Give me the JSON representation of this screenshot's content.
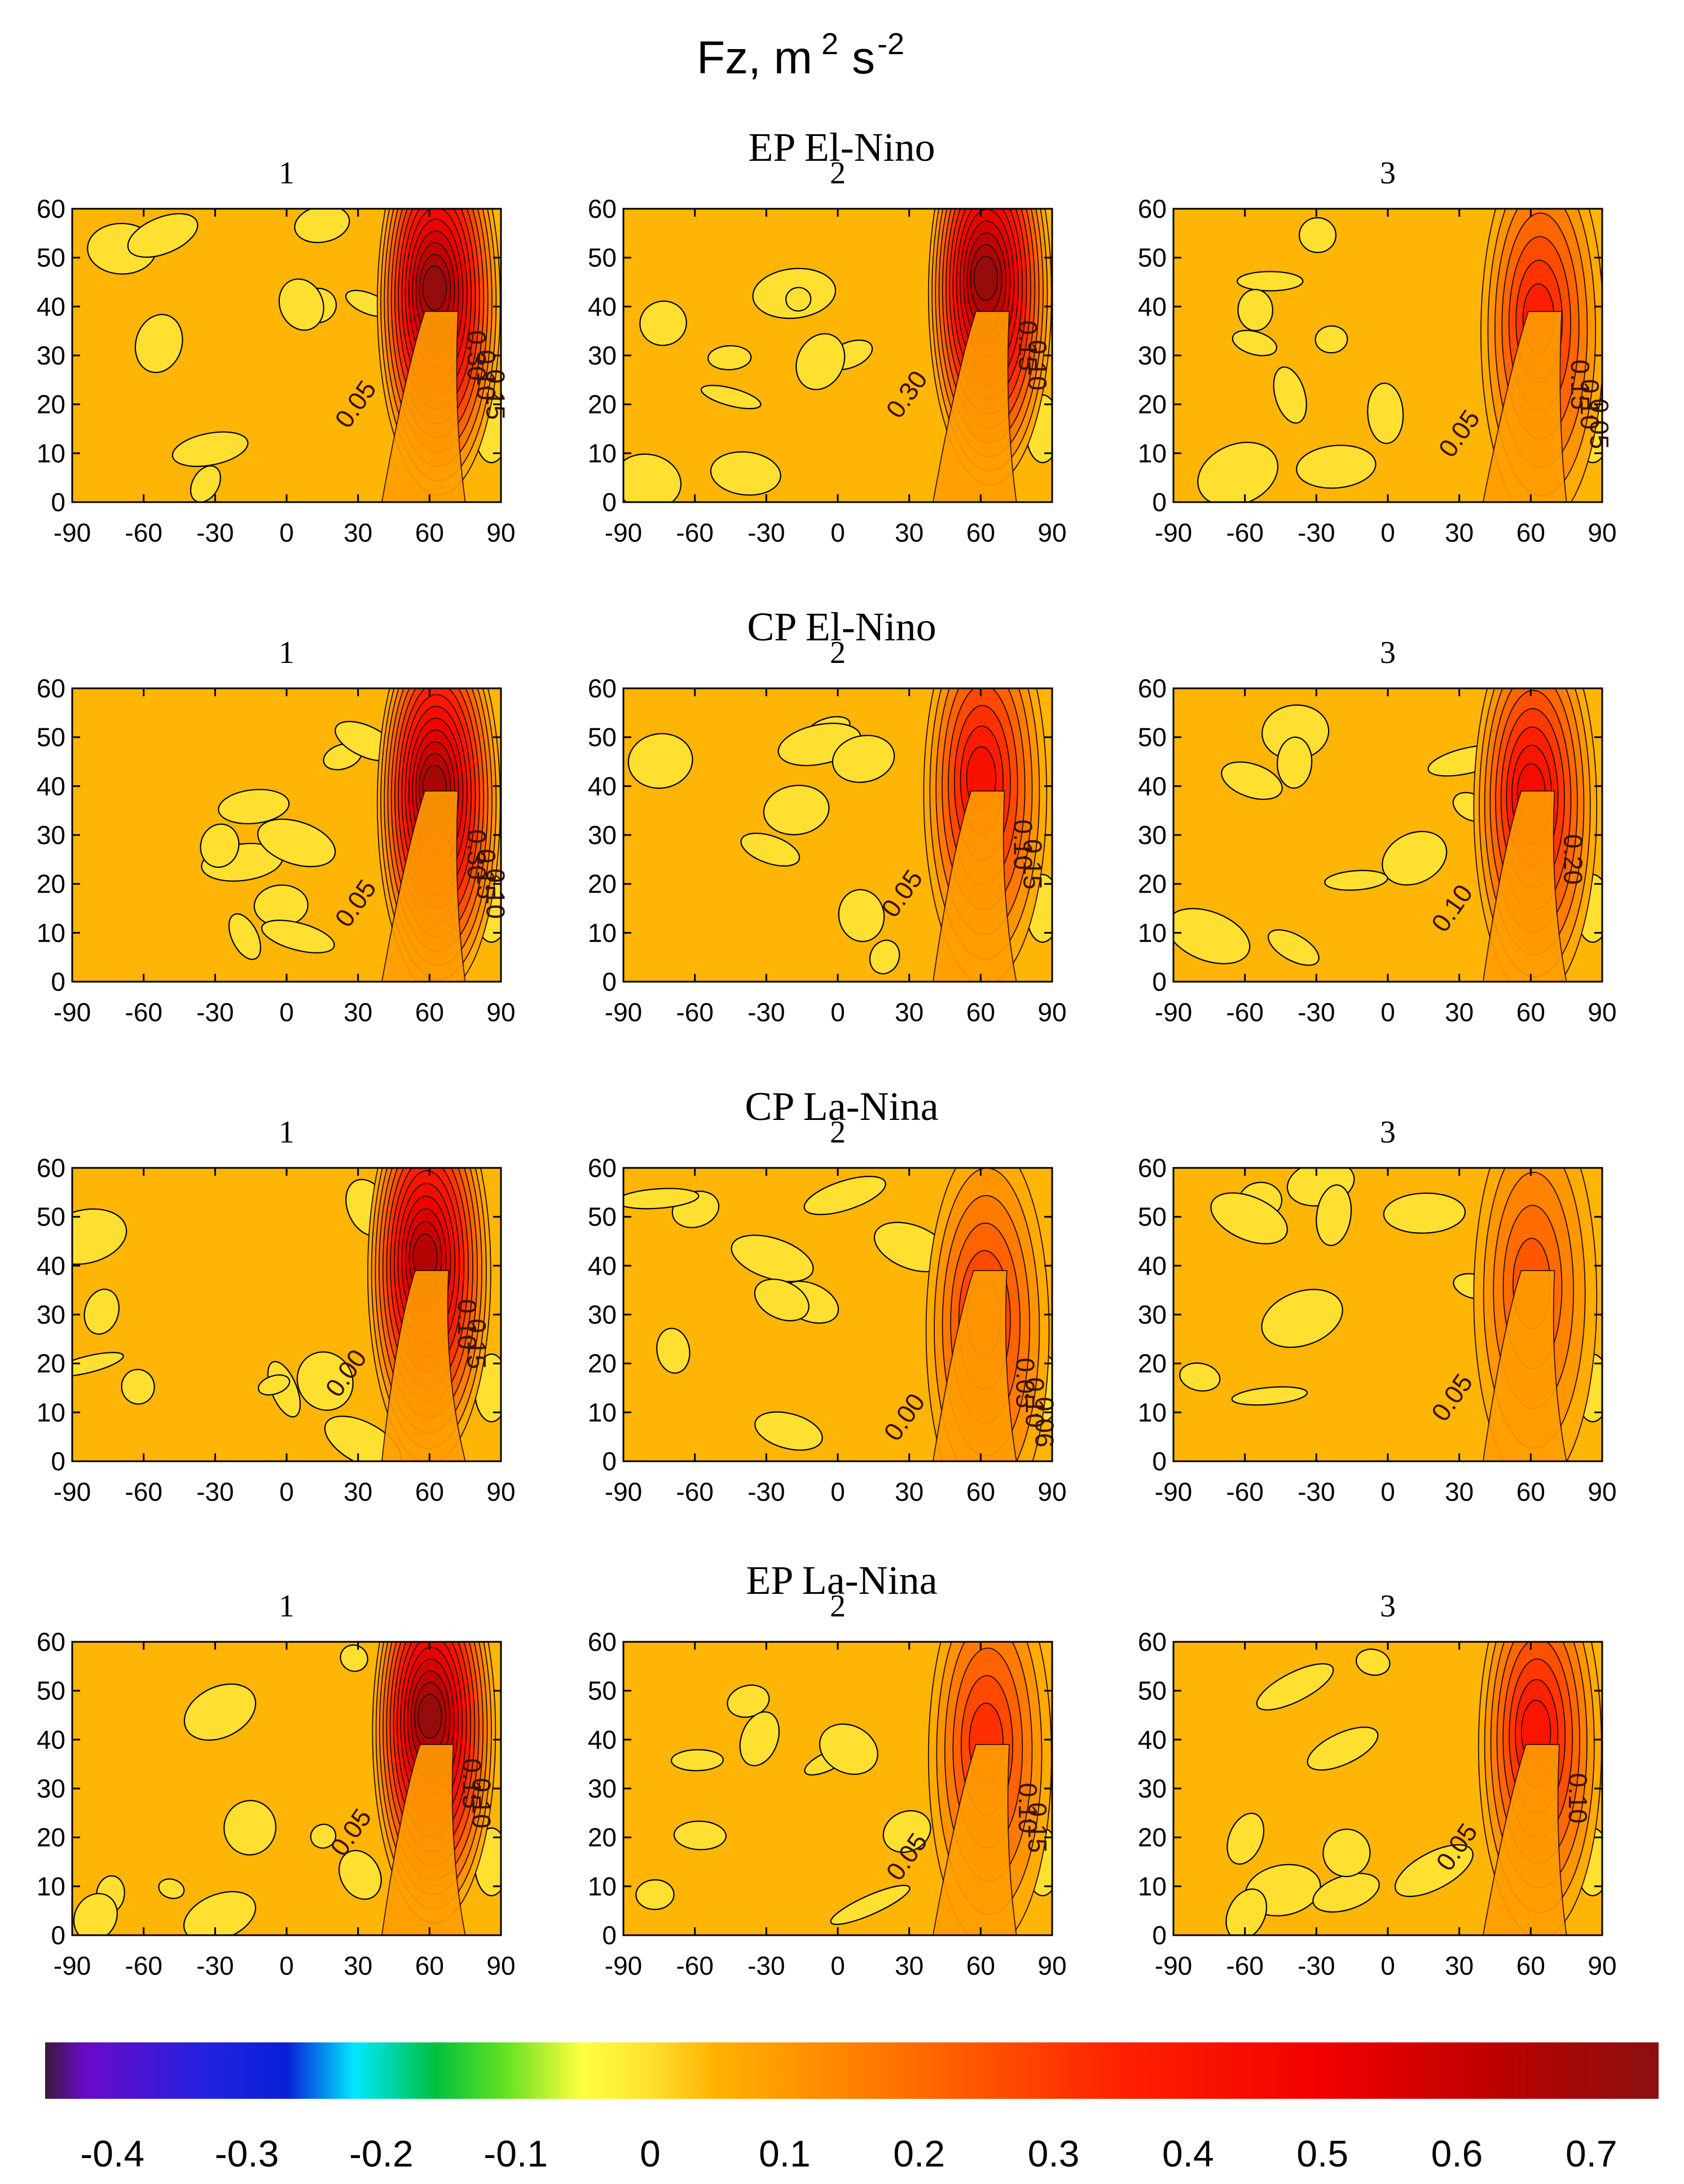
{
  "chart_data": {
    "type": "heatmap",
    "title": "Fz, m",
    "title_exp1": "2",
    "title_unit": "s",
    "title_exp2": "-2",
    "xlabel": "",
    "ylabel": "",
    "xlim": [
      -90,
      90
    ],
    "ylim": [
      0,
      60
    ],
    "x_ticks": [
      "-90",
      "-60",
      "-30",
      "0",
      "30",
      "60",
      "90"
    ],
    "y_ticks": [
      "0",
      "10",
      "20",
      "30",
      "40",
      "50",
      "60"
    ],
    "colorbar": {
      "range": [
        -0.45,
        0.75
      ],
      "ticks": [
        "-0.4",
        "-0.3",
        "-0.2",
        "-0.1",
        "0",
        "0.1",
        "0.2",
        "0.3",
        "0.4",
        "0.5",
        "0.6",
        "0.7"
      ],
      "tick_values": [
        -0.4,
        -0.3,
        -0.2,
        -0.1,
        0,
        0.1,
        0.2,
        0.3,
        0.4,
        0.5,
        0.6,
        0.7
      ],
      "stops": [
        {
          "v": -0.45,
          "c": "#3a1a3a"
        },
        {
          "v": -0.42,
          "c": "#6a0ac8"
        },
        {
          "v": -0.33,
          "c": "#2222e0"
        },
        {
          "v": -0.27,
          "c": "#0a1fd8"
        },
        {
          "v": -0.22,
          "c": "#00e8ff"
        },
        {
          "v": -0.16,
          "c": "#00c040"
        },
        {
          "v": -0.11,
          "c": "#60e020"
        },
        {
          "v": -0.05,
          "c": "#ffff40"
        },
        {
          "v": 0.0,
          "c": "#ffe030"
        },
        {
          "v": 0.05,
          "c": "#ffb000"
        },
        {
          "v": 0.12,
          "c": "#ff9000"
        },
        {
          "v": 0.22,
          "c": "#ff6000"
        },
        {
          "v": 0.35,
          "c": "#ff2000"
        },
        {
          "v": 0.5,
          "c": "#f00000"
        },
        {
          "v": 0.62,
          "c": "#c00000"
        },
        {
          "v": 0.75,
          "c": "#8a1010"
        }
      ]
    },
    "groups": [
      {
        "name": "EP El-Nino",
        "panels": [
          {
            "label": "1",
            "peak_lat": 62,
            "peak_height": 44,
            "peak_value": 0.72,
            "contour_labels": [
              "0.05",
              "0.30",
              "0.10",
              "0.15"
            ]
          },
          {
            "label": "2",
            "peak_lat": 62,
            "peak_height": 46,
            "peak_value": 0.72,
            "contour_labels": [
              "0.30",
              "0.15",
              "0.10"
            ]
          },
          {
            "label": "3",
            "peak_lat": 63,
            "peak_height": 38,
            "peak_value": 0.36,
            "contour_labels": [
              "0.05",
              "0.15",
              "0.10",
              "0.05"
            ]
          }
        ]
      },
      {
        "name": "CP El-Nino",
        "panels": [
          {
            "label": "1",
            "peak_lat": 62,
            "peak_height": 40,
            "peak_value": 0.68,
            "contour_labels": [
              "0.05",
              "0.30",
              "0.15",
              "0.10"
            ]
          },
          {
            "label": "2",
            "peak_lat": 60,
            "peak_height": 42,
            "peak_value": 0.42,
            "contour_labels": [
              "0.05",
              "0.10",
              "0.15"
            ]
          },
          {
            "label": "3",
            "peak_lat": 60,
            "peak_height": 39,
            "peak_value": 0.45,
            "contour_labels": [
              "0.10",
              "0.20"
            ]
          }
        ]
      },
      {
        "name": "CP La-Nina",
        "panels": [
          {
            "label": "1",
            "peak_lat": 58,
            "peak_height": 42,
            "peak_value": 0.65,
            "contour_labels": [
              "0.00",
              "0.10",
              "0.15"
            ]
          },
          {
            "label": "2",
            "peak_lat": 61,
            "peak_height": 30,
            "peak_value": 0.32,
            "contour_labels": [
              "0.00",
              "0.05",
              "0.10",
              "0.06"
            ]
          },
          {
            "label": "3",
            "peak_lat": 60,
            "peak_height": 37,
            "peak_value": 0.24,
            "contour_labels": [
              "0.05"
            ]
          }
        ]
      },
      {
        "name": "EP La-Nina",
        "panels": [
          {
            "label": "1",
            "peak_lat": 60,
            "peak_height": 45,
            "peak_value": 0.72,
            "contour_labels": [
              "0.05",
              "0.15",
              "0.10"
            ]
          },
          {
            "label": "2",
            "peak_lat": 62,
            "peak_height": 40,
            "peak_value": 0.32,
            "contour_labels": [
              "0.05",
              "0.10",
              "0.15"
            ]
          },
          {
            "label": "3",
            "peak_lat": 62,
            "peak_height": 42,
            "peak_value": 0.4,
            "contour_labels": [
              "0.05",
              "0.10"
            ]
          }
        ]
      }
    ]
  }
}
